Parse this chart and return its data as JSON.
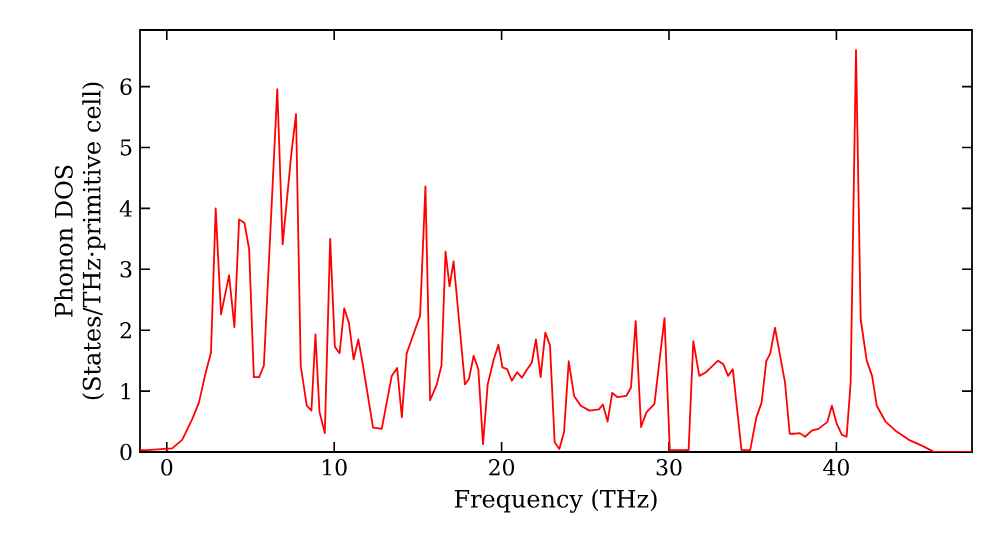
{
  "chart_data": {
    "type": "line",
    "xlabel": "Frequency (THz)",
    "ylabel": "Phonon DOS (States/THz·primitive cell)",
    "xlim": [
      -1.6,
      48.1
    ],
    "ylim": [
      0,
      6.93
    ],
    "xticks": [
      0,
      10,
      20,
      30,
      40
    ],
    "yticks": [
      0,
      1,
      2,
      3,
      4,
      5,
      6
    ],
    "marker": "none",
    "line_style": "solid",
    "series": [
      {
        "color": "#ff0000",
        "x": [
          -1.6,
          -1.2,
          0.32,
          0.92,
          1.52,
          1.92,
          2.32,
          2.64,
          2.92,
          3.24,
          3.72,
          4.04,
          4.32,
          4.64,
          4.92,
          5.2,
          5.52,
          5.8,
          6.6,
          6.92,
          7.44,
          7.72,
          8.0,
          8.36,
          8.64,
          8.88,
          9.12,
          9.44,
          9.76,
          10.04,
          10.32,
          10.6,
          10.88,
          11.16,
          11.44,
          11.72,
          12.32,
          12.84,
          13.44,
          13.76,
          14.04,
          14.33,
          14.73,
          15.13,
          15.45,
          15.73,
          16.13,
          16.41,
          16.65,
          16.89,
          17.13,
          17.45,
          17.81,
          18.05,
          18.33,
          18.61,
          18.89,
          19.17,
          19.53,
          19.81,
          20.05,
          20.33,
          20.61,
          20.93,
          21.21,
          21.53,
          21.81,
          22.05,
          22.33,
          22.61,
          22.89,
          23.17,
          23.45,
          23.73,
          24.01,
          24.33,
          24.73,
          25.25,
          25.81,
          26.05,
          26.33,
          26.61,
          26.93,
          27.45,
          27.73,
          28.01,
          28.33,
          28.65,
          29.13,
          29.73,
          30.05,
          31.17,
          31.45,
          31.81,
          32.21,
          32.93,
          33.25,
          33.53,
          33.81,
          34.33,
          34.85,
          35.21,
          35.53,
          35.81,
          36.05,
          36.33,
          36.61,
          36.93,
          37.21,
          37.53,
          37.81,
          38.13,
          38.53,
          38.93,
          39.45,
          39.73,
          40.01,
          40.33,
          40.61,
          40.85,
          41.17,
          41.45,
          41.81,
          42.13,
          42.41,
          42.93,
          43.53,
          44.33,
          45.13,
          45.85,
          48.1
        ],
        "values": [
          0.03,
          0.03,
          0.06,
          0.2,
          0.54,
          0.81,
          1.3,
          1.63,
          4.0,
          2.26,
          2.9,
          2.05,
          3.82,
          3.76,
          3.33,
          1.23,
          1.23,
          1.42,
          5.96,
          3.41,
          4.9,
          5.55,
          1.42,
          0.76,
          0.68,
          1.93,
          0.66,
          0.31,
          3.5,
          1.73,
          1.62,
          2.36,
          2.12,
          1.52,
          1.85,
          1.42,
          0.4,
          0.38,
          1.25,
          1.38,
          0.57,
          1.62,
          1.93,
          2.24,
          4.36,
          0.85,
          1.11,
          1.42,
          3.29,
          2.72,
          3.13,
          2.18,
          1.11,
          1.2,
          1.58,
          1.36,
          0.13,
          1.11,
          1.52,
          1.76,
          1.39,
          1.36,
          1.17,
          1.31,
          1.22,
          1.36,
          1.47,
          1.85,
          1.23,
          1.96,
          1.75,
          0.16,
          0.05,
          0.33,
          1.49,
          0.92,
          0.76,
          0.68,
          0.7,
          0.78,
          0.5,
          0.97,
          0.9,
          0.92,
          1.06,
          2.15,
          0.41,
          0.65,
          0.79,
          2.2,
          0.03,
          0.03,
          1.82,
          1.25,
          1.31,
          1.5,
          1.44,
          1.25,
          1.36,
          0.03,
          0.03,
          0.56,
          0.81,
          1.49,
          1.62,
          2.04,
          1.62,
          1.14,
          0.3,
          0.3,
          0.31,
          0.25,
          0.35,
          0.38,
          0.49,
          0.76,
          0.47,
          0.28,
          0.25,
          1.14,
          6.6,
          2.18,
          1.5,
          1.25,
          0.76,
          0.5,
          0.35,
          0.2,
          0.1,
          0.0,
          0.0
        ]
      }
    ]
  }
}
